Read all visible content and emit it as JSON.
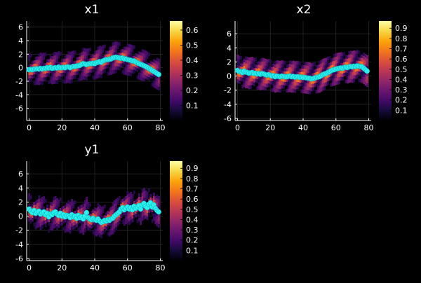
{
  "chart_data": [
    {
      "type": "heatmap+scatter",
      "title": "x1",
      "xlim": [
        -1.5,
        81.5
      ],
      "ylim": [
        -7.8,
        6.9
      ],
      "xticks": [
        0,
        20,
        40,
        60,
        80
      ],
      "yticks": [
        -6,
        -4,
        -2,
        0,
        2,
        4,
        6
      ],
      "grid": true,
      "colorbar": {
        "ticks": [
          0.1,
          0.2,
          0.3,
          0.4,
          0.5,
          0.6
        ],
        "min": 0.0,
        "max": 0.66
      },
      "points_x": [
        0,
        1,
        2,
        3,
        4,
        5,
        6,
        7,
        8,
        9,
        10,
        11,
        12,
        13,
        14,
        15,
        16,
        17,
        18,
        19,
        20,
        21,
        22,
        23,
        24,
        25,
        26,
        27,
        28,
        29,
        30,
        31,
        32,
        33,
        34,
        35,
        36,
        37,
        38,
        39,
        40,
        41,
        42,
        43,
        44,
        45,
        46,
        47,
        48,
        49,
        50,
        51,
        52,
        53,
        54,
        55,
        56,
        57,
        58,
        59,
        60,
        61,
        62,
        63,
        64,
        65,
        66,
        67,
        68,
        69,
        70,
        71,
        72,
        73,
        74,
        75,
        76,
        77,
        78,
        79
      ],
      "points_y": [
        -0.3,
        -0.25,
        -0.3,
        -0.2,
        -0.2,
        -0.15,
        -0.2,
        -0.1,
        -0.2,
        -0.1,
        -0.1,
        0.0,
        -0.05,
        0.05,
        -0.1,
        -0.05,
        0.0,
        -0.05,
        0.1,
        0.0,
        0.0,
        0.05,
        0.0,
        0.1,
        0.1,
        0.0,
        0.1,
        0.2,
        0.2,
        0.25,
        0.3,
        0.35,
        0.5,
        0.6,
        0.55,
        0.45,
        0.55,
        0.6,
        0.6,
        0.65,
        0.6,
        0.75,
        0.8,
        0.9,
        0.8,
        1.0,
        1.1,
        1.2,
        1.2,
        1.25,
        1.3,
        1.45,
        1.5,
        1.55,
        1.5,
        1.45,
        1.4,
        1.45,
        1.3,
        1.3,
        1.2,
        1.15,
        1.1,
        1.0,
        1.0,
        0.85,
        0.7,
        0.6,
        0.5,
        0.4,
        0.3,
        0.2,
        0.05,
        -0.1,
        -0.25,
        -0.4,
        -0.55,
        -0.7,
        -0.85,
        -1.0
      ]
    },
    {
      "type": "heatmap+scatter",
      "title": "x2",
      "xlim": [
        -1.5,
        81.5
      ],
      "ylim": [
        -6.3,
        7.8
      ],
      "xticks": [
        0,
        20,
        40,
        60,
        80
      ],
      "yticks": [
        -6,
        -4,
        -2,
        0,
        2,
        4,
        6
      ],
      "grid": true,
      "colorbar": {
        "ticks": [
          0.1,
          0.2,
          0.3,
          0.4,
          0.5,
          0.6,
          0.7,
          0.8,
          0.9
        ],
        "min": 0.0,
        "max": 0.97
      },
      "points_x": [
        0,
        1,
        2,
        3,
        4,
        5,
        6,
        7,
        8,
        9,
        10,
        11,
        12,
        13,
        14,
        15,
        16,
        17,
        18,
        19,
        20,
        21,
        22,
        23,
        24,
        25,
        26,
        27,
        28,
        29,
        30,
        31,
        32,
        33,
        34,
        35,
        36,
        37,
        38,
        39,
        40,
        41,
        42,
        43,
        44,
        45,
        46,
        47,
        48,
        49,
        50,
        51,
        52,
        53,
        54,
        55,
        56,
        57,
        58,
        59,
        60,
        61,
        62,
        63,
        64,
        65,
        66,
        67,
        68,
        69,
        70,
        71,
        72,
        73,
        74,
        75,
        76,
        77,
        78,
        79
      ],
      "points_y": [
        0.8,
        0.65,
        0.6,
        0.5,
        0.7,
        0.55,
        0.5,
        0.4,
        0.45,
        0.5,
        0.35,
        0.4,
        0.3,
        0.35,
        0.25,
        0.35,
        0.3,
        0.2,
        0.15,
        0.2,
        0.1,
        0.0,
        0.05,
        -0.1,
        0.0,
        -0.05,
        -0.1,
        0.0,
        -0.05,
        -0.1,
        -0.1,
        -0.05,
        0.0,
        -0.1,
        -0.05,
        -0.15,
        -0.1,
        -0.1,
        -0.2,
        -0.15,
        -0.2,
        -0.2,
        -0.25,
        -0.3,
        -0.3,
        -0.4,
        -0.35,
        -0.3,
        -0.2,
        -0.15,
        -0.1,
        0.05,
        0.2,
        0.3,
        0.35,
        0.5,
        0.6,
        0.75,
        0.85,
        0.9,
        1.0,
        1.05,
        1.1,
        1.15,
        1.1,
        1.2,
        1.25,
        1.2,
        1.3,
        1.35,
        1.3,
        1.4,
        1.35,
        1.45,
        1.4,
        1.35,
        1.3,
        1.1,
        0.9,
        0.7
      ]
    },
    {
      "type": "heatmap+scatter",
      "title": "y1",
      "xlim": [
        -1.5,
        81.5
      ],
      "ylim": [
        -6.3,
        7.8
      ],
      "xticks": [
        0,
        20,
        40,
        60,
        80
      ],
      "yticks": [
        -6,
        -4,
        -2,
        0,
        2,
        4,
        6
      ],
      "grid": true,
      "colorbar": {
        "ticks": [
          0.1,
          0.2,
          0.3,
          0.4,
          0.5,
          0.6,
          0.7,
          0.8,
          0.9
        ],
        "min": 0.0,
        "max": 0.97
      },
      "points_x": [
        0,
        1,
        2,
        3,
        4,
        5,
        6,
        7,
        8,
        9,
        10,
        11,
        12,
        13,
        14,
        15,
        16,
        17,
        18,
        19,
        20,
        21,
        22,
        23,
        24,
        25,
        26,
        27,
        28,
        29,
        30,
        31,
        32,
        33,
        34,
        35,
        36,
        37,
        38,
        39,
        40,
        41,
        42,
        43,
        44,
        45,
        46,
        47,
        48,
        49,
        50,
        51,
        52,
        53,
        54,
        55,
        56,
        57,
        58,
        59,
        60,
        61,
        62,
        63,
        64,
        65,
        66,
        67,
        68,
        69,
        70,
        71,
        72,
        73,
        74,
        75,
        76,
        77,
        78,
        79
      ],
      "points_y": [
        1.0,
        0.7,
        0.5,
        0.8,
        0.4,
        0.6,
        0.7,
        0.3,
        0.5,
        0.6,
        0.2,
        0.4,
        -0.1,
        0.3,
        0.2,
        0.5,
        0.6,
        0.3,
        0.1,
        0.4,
        0.0,
        0.2,
        -0.1,
        0.1,
        0.0,
        -0.2,
        0.2,
        -0.1,
        0.0,
        -0.3,
        0.1,
        -0.2,
        -0.1,
        -0.4,
        0.0,
        0.5,
        -0.2,
        -0.4,
        -0.5,
        -0.3,
        -0.5,
        -0.6,
        -0.4,
        -0.7,
        -0.9,
        -0.8,
        -0.6,
        -0.7,
        -0.5,
        -0.6,
        -0.4,
        -0.3,
        0.0,
        0.2,
        0.4,
        0.6,
        1.0,
        1.2,
        0.9,
        1.1,
        1.3,
        1.0,
        1.2,
        0.9,
        1.4,
        1.1,
        1.3,
        1.5,
        1.0,
        1.6,
        1.8,
        1.4,
        1.2,
        1.7,
        1.9,
        1.3,
        1.6,
        1.1,
        0.8,
        0.6
      ]
    }
  ],
  "colors": {
    "background": "#000000",
    "marker": "#2cf0f0",
    "axis": "#ffffff"
  }
}
